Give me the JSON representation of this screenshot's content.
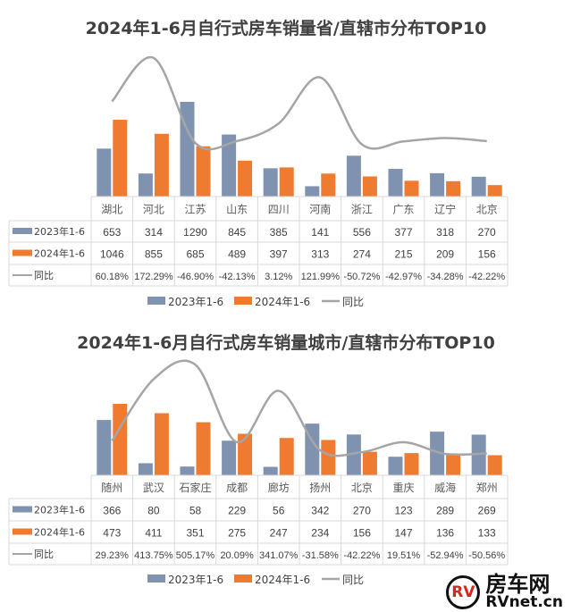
{
  "chart_data": [
    {
      "type": "bar",
      "title": "2024年1-6月自行式房车销量省/直辖市分布TOP10",
      "categories": [
        "湖北",
        "河北",
        "江苏",
        "山东",
        "四川",
        "河南",
        "浙江",
        "广东",
        "辽宁",
        "北京"
      ],
      "series": [
        {
          "name": "2023年1-6",
          "type": "bar",
          "color": "#7f93b0",
          "values": [
            653,
            314,
            1290,
            845,
            385,
            141,
            556,
            377,
            318,
            270
          ],
          "labels": [
            "653",
            "314",
            "1290",
            "845",
            "385",
            "141",
            "556",
            "377",
            "318",
            "270"
          ]
        },
        {
          "name": "2024年1-6",
          "type": "bar",
          "color": "#ee7b30",
          "values": [
            1046,
            855,
            685,
            489,
            397,
            313,
            274,
            215,
            209,
            156
          ],
          "labels": [
            "1046",
            "855",
            "685",
            "489",
            "397",
            "313",
            "274",
            "215",
            "209",
            "156"
          ]
        },
        {
          "name": "同比",
          "type": "line",
          "color": "#a5a5a5",
          "values": [
            60.18,
            172.29,
            -46.9,
            -42.13,
            3.12,
            121.99,
            -50.72,
            -42.97,
            -34.28,
            -42.22
          ],
          "labels": [
            "60.18%",
            "172.29%",
            "-46.90%",
            "-42.13%",
            "3.12%",
            "121.99%",
            "-50.72%",
            "-42.97%",
            "-34.28%",
            "-42.22%"
          ]
        }
      ],
      "legend": "bottom",
      "grid": false,
      "data_table": true
    },
    {
      "type": "bar",
      "title": "2024年1-6月自行式房车销量城市/直辖市分布TOP10",
      "categories": [
        "随州",
        "武汉",
        "石家庄",
        "成都",
        "廊坊",
        "扬州",
        "北京",
        "重庆",
        "威海",
        "郑州"
      ],
      "series": [
        {
          "name": "2023年1-6",
          "type": "bar",
          "color": "#7f93b0",
          "values": [
            366,
            80,
            58,
            229,
            56,
            342,
            270,
            123,
            289,
            269
          ],
          "labels": [
            "366",
            "80",
            "58",
            "229",
            "56",
            "342",
            "270",
            "123",
            "289",
            "269"
          ]
        },
        {
          "name": "2024年1-6",
          "type": "bar",
          "color": "#ee7b30",
          "values": [
            473,
            411,
            351,
            275,
            247,
            234,
            156,
            147,
            136,
            133
          ],
          "labels": [
            "473",
            "411",
            "351",
            "275",
            "247",
            "234",
            "156",
            "147",
            "136",
            "133"
          ]
        },
        {
          "name": "同比",
          "type": "line",
          "color": "#a5a5a5",
          "values": [
            29.23,
            413.75,
            505.17,
            20.09,
            341.07,
            -31.58,
            -42.22,
            19.51,
            -52.94,
            -50.56
          ],
          "labels": [
            "29.23%",
            "413.75%",
            "505.17%",
            "20.09%",
            "341.07%",
            "-31.58%",
            "-42.22%",
            "19.51%",
            "-52.94%",
            "-50.56%"
          ]
        }
      ],
      "legend": "bottom",
      "grid": false,
      "data_table": true
    }
  ],
  "watermark": {
    "logo": "RV",
    "name": "房车网",
    "domain": "RVnet.cn"
  }
}
